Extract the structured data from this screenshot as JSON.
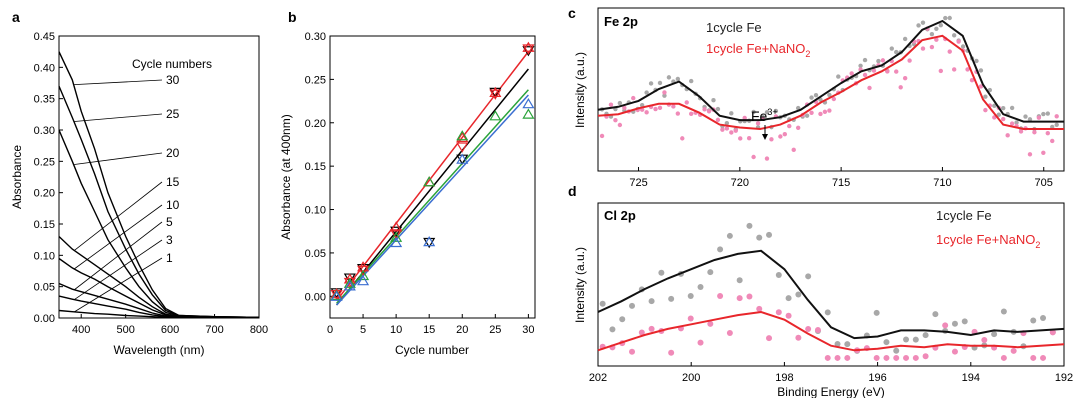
{
  "colors": {
    "black": "#000000",
    "red": "#e8262b",
    "green": "#2aa33a",
    "blue": "#3b6fd1",
    "gray_dots": "#a8a8a8",
    "pink_dots": "#f08ab8"
  },
  "panels": {
    "a": {
      "label": "a",
      "xlabel": "Wavelength (nm)",
      "ylabel": "Absorbance",
      "legend_title": "Cycle numbers",
      "cycle_labels": [
        "30",
        "25",
        "20",
        "15",
        "10",
        "5",
        "3",
        "1"
      ]
    },
    "b": {
      "label": "b",
      "xlabel": "Cycle number",
      "ylabel": "Absorbance (at 400nm)"
    },
    "c": {
      "label": "c",
      "title": "Fe 2p",
      "ylabel": "Intensity (a.u.)",
      "annotation": "Fe",
      "annotation_sup": "3+",
      "legend": [
        "1cycle Fe",
        "1cycle Fe+NaNO",
        "2"
      ]
    },
    "d": {
      "label": "d",
      "title": "Cl 2p",
      "ylabel": "Intensity (a.u.)",
      "xlabel": "Binding Energy (eV)",
      "legend": [
        "1cycle Fe",
        "1cycle Fe+NaNO",
        "2"
      ]
    }
  },
  "chart_data": [
    {
      "panel": "a",
      "type": "line",
      "xlim": [
        350,
        800
      ],
      "ylim": [
        0,
        0.45
      ],
      "xticks": [
        400,
        500,
        600,
        700,
        800
      ],
      "yticks": [
        0.0,
        0.05,
        0.1,
        0.15,
        0.2,
        0.25,
        0.3,
        0.35,
        0.4,
        0.45
      ],
      "series": [
        {
          "name": "30",
          "x": [
            350,
            380,
            400,
            430,
            460,
            500,
            530,
            560,
            590,
            620,
            700,
            800
          ],
          "y": [
            0.425,
            0.38,
            0.33,
            0.27,
            0.2,
            0.13,
            0.085,
            0.045,
            0.015,
            0.004,
            0.002,
            0.001
          ]
        },
        {
          "name": "25",
          "x": [
            350,
            380,
            400,
            430,
            460,
            500,
            530,
            560,
            590,
            620,
            700,
            800
          ],
          "y": [
            0.37,
            0.32,
            0.285,
            0.23,
            0.17,
            0.11,
            0.07,
            0.037,
            0.012,
            0.004,
            0.002,
            0.001
          ]
        },
        {
          "name": "20",
          "x": [
            350,
            380,
            400,
            430,
            460,
            500,
            530,
            560,
            590,
            620,
            700,
            800
          ],
          "y": [
            0.3,
            0.25,
            0.215,
            0.17,
            0.125,
            0.08,
            0.05,
            0.026,
            0.009,
            0.003,
            0.002,
            0.001
          ]
        },
        {
          "name": "15",
          "x": [
            350,
            380,
            400,
            430,
            460,
            500,
            530,
            560,
            590,
            620,
            700,
            800
          ],
          "y": [
            0.13,
            0.11,
            0.1,
            0.085,
            0.07,
            0.05,
            0.033,
            0.018,
            0.006,
            0.002,
            0.001,
            0.001
          ]
        },
        {
          "name": "10",
          "x": [
            350,
            380,
            400,
            430,
            460,
            500,
            530,
            560,
            590,
            620,
            700,
            800
          ],
          "y": [
            0.095,
            0.08,
            0.072,
            0.062,
            0.05,
            0.035,
            0.024,
            0.013,
            0.005,
            0.002,
            0.001,
            0.001
          ]
        },
        {
          "name": "5",
          "x": [
            350,
            380,
            400,
            430,
            460,
            500,
            530,
            560,
            590,
            620,
            700,
            800
          ],
          "y": [
            0.055,
            0.046,
            0.042,
            0.036,
            0.03,
            0.022,
            0.015,
            0.008,
            0.003,
            0.001,
            0.001,
            0.001
          ]
        },
        {
          "name": "3",
          "x": [
            350,
            380,
            400,
            430,
            460,
            500,
            530,
            560,
            590,
            620,
            700,
            800
          ],
          "y": [
            0.035,
            0.03,
            0.027,
            0.023,
            0.019,
            0.014,
            0.009,
            0.005,
            0.002,
            0.001,
            0.001,
            0.001
          ]
        },
        {
          "name": "1",
          "x": [
            350,
            380,
            400,
            430,
            460,
            500,
            530,
            560,
            590,
            620,
            700,
            800
          ],
          "y": [
            0.012,
            0.01,
            0.009,
            0.007,
            0.006,
            0.004,
            0.003,
            0.002,
            0.001,
            0.001,
            0.001,
            0.001
          ]
        }
      ]
    },
    {
      "panel": "b",
      "type": "scatter",
      "xlim": [
        0,
        31
      ],
      "ylim": [
        -0.025,
        0.3
      ],
      "xticks": [
        0,
        5,
        10,
        15,
        20,
        25,
        30
      ],
      "yticks": [
        0.0,
        0.05,
        0.1,
        0.15,
        0.2,
        0.25,
        0.3
      ],
      "series": [
        {
          "marker": "triangle-down",
          "color": "black",
          "x": [
            1,
            3,
            5,
            10,
            15,
            20,
            25,
            30
          ],
          "y": [
            0.004,
            0.021,
            0.032,
            0.075,
            0.062,
            0.158,
            0.235,
            0.283
          ]
        },
        {
          "marker": "triangle-down",
          "color": "red",
          "x": [
            1,
            3,
            5,
            10,
            20,
            25,
            30
          ],
          "y": [
            0.002,
            0.016,
            0.03,
            0.072,
            0.172,
            0.233,
            0.285
          ]
        },
        {
          "marker": "triangle-up",
          "color": "red",
          "x": [
            1,
            3,
            5,
            10,
            15,
            20,
            25,
            30
          ],
          "y": [
            0.003,
            0.02,
            0.034,
            0.08,
            0.132,
            0.183,
            0.235,
            0.287
          ]
        },
        {
          "marker": "triangle-up",
          "color": "green",
          "x": [
            1,
            3,
            5,
            10,
            15,
            20,
            25,
            30
          ],
          "y": [
            0.001,
            0.015,
            0.024,
            0.068,
            0.132,
            0.185,
            0.208,
            0.21
          ]
        },
        {
          "marker": "triangle-up",
          "color": "blue",
          "x": [
            1,
            3,
            5,
            10,
            15,
            20,
            30
          ],
          "y": [
            0.0,
            0.012,
            0.018,
            0.062,
            0.063,
            0.158,
            0.222
          ]
        }
      ],
      "fits": [
        {
          "color": "black",
          "x": [
            1,
            30
          ],
          "y": [
            -0.01,
            0.262
          ]
        },
        {
          "color": "red",
          "x": [
            1,
            30
          ],
          "y": [
            -0.005,
            0.282
          ]
        },
        {
          "color": "green",
          "x": [
            1,
            30
          ],
          "y": [
            -0.008,
            0.238
          ]
        },
        {
          "color": "blue",
          "x": [
            1,
            30
          ],
          "y": [
            -0.01,
            0.232
          ]
        }
      ]
    },
    {
      "panel": "c",
      "type": "line",
      "xlim": [
        727,
        704
      ],
      "xticks": [
        725,
        720,
        715,
        710,
        705
      ],
      "ylim": [
        0,
        1
      ],
      "series": [
        {
          "name": "1cycle Fe",
          "color": "black",
          "x": [
            727,
            726,
            725,
            724,
            723,
            722,
            721,
            720,
            719,
            718,
            717,
            716,
            715,
            714,
            713,
            712,
            711,
            710,
            709,
            708,
            707,
            706,
            705,
            704
          ],
          "y": [
            0.38,
            0.4,
            0.44,
            0.52,
            0.57,
            0.47,
            0.34,
            0.31,
            0.31,
            0.33,
            0.38,
            0.47,
            0.56,
            0.64,
            0.68,
            0.77,
            0.92,
            0.98,
            0.88,
            0.55,
            0.35,
            0.3,
            0.3,
            0.3
          ]
        },
        {
          "name": "1cycle Fe+NaNO2",
          "color": "red",
          "x": [
            727,
            726,
            725,
            724,
            723,
            722,
            721,
            720,
            719,
            718,
            717,
            716,
            715,
            714,
            713,
            712,
            711,
            710,
            709,
            708,
            707,
            706,
            705,
            704
          ],
          "y": [
            0.34,
            0.35,
            0.39,
            0.42,
            0.42,
            0.36,
            0.28,
            0.26,
            0.25,
            0.28,
            0.34,
            0.43,
            0.5,
            0.58,
            0.64,
            0.72,
            0.85,
            0.88,
            0.78,
            0.45,
            0.28,
            0.25,
            0.25,
            0.25
          ]
        }
      ]
    },
    {
      "panel": "d",
      "type": "line",
      "xlim": [
        202,
        192
      ],
      "xticks": [
        202,
        200,
        198,
        196,
        194,
        192
      ],
      "ylim": [
        0,
        1
      ],
      "series": [
        {
          "name": "1cycle Fe",
          "color": "black",
          "x": [
            202,
            201.5,
            201,
            200.5,
            200,
            199.5,
            199,
            198.5,
            198,
            197.5,
            197,
            196.5,
            196,
            195.5,
            195,
            194.5,
            194,
            193.5,
            193,
            192.5,
            192
          ],
          "y": [
            0.32,
            0.39,
            0.47,
            0.54,
            0.6,
            0.66,
            0.7,
            0.72,
            0.6,
            0.4,
            0.22,
            0.15,
            0.16,
            0.2,
            0.2,
            0.19,
            0.17,
            0.2,
            0.19,
            0.2,
            0.21
          ]
        },
        {
          "name": "1cycle Fe+NaNO2",
          "color": "red",
          "x": [
            202,
            201.5,
            201,
            200.5,
            200,
            199.5,
            199,
            198.5,
            198,
            197.5,
            197,
            196.5,
            196,
            195.5,
            195,
            194.5,
            194,
            193.5,
            193,
            192.5,
            192
          ],
          "y": [
            0.07,
            0.12,
            0.17,
            0.21,
            0.24,
            0.27,
            0.3,
            0.32,
            0.27,
            0.18,
            0.1,
            0.07,
            0.08,
            0.1,
            0.09,
            0.11,
            0.1,
            0.1,
            0.09,
            0.1,
            0.11
          ]
        }
      ]
    }
  ]
}
